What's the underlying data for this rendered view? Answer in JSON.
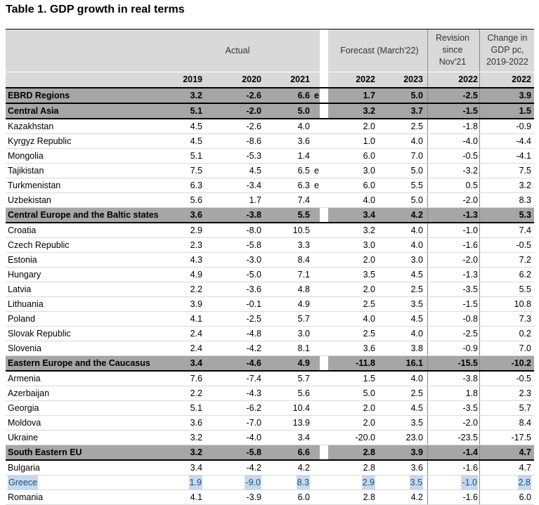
{
  "title": "Table 1. GDP growth in real terms",
  "headers": {
    "actual": "Actual",
    "forecast": "Forecast (March'22)",
    "revision": "Revision\nsince\nNov'21",
    "change": "Change in\nGDP pc,\n2019-2022"
  },
  "subheaders": [
    "2019",
    "2020",
    "2021",
    "2022",
    "2023",
    "2022",
    "2022"
  ],
  "rows": [
    {
      "name": "EBRD Regions",
      "type": "group",
      "v": [
        "3.2",
        "-2.6",
        "6.6",
        "1.7",
        "5.0",
        "-2.5",
        "3.9"
      ],
      "mark": "e"
    },
    {
      "name": "Central Asia",
      "type": "group",
      "v": [
        "5.1",
        "-2.0",
        "5.0",
        "3.2",
        "3.7",
        "-1.5",
        "1.5"
      ],
      "mark": ""
    },
    {
      "name": "Kazakhstan",
      "type": "norm",
      "v": [
        "4.5",
        "-2.6",
        "4.0",
        "2.0",
        "2.5",
        "-1.8",
        "-0.9"
      ],
      "mark": ""
    },
    {
      "name": "Kyrgyz Republic",
      "type": "norm",
      "v": [
        "4.5",
        "-8.6",
        "3.6",
        "1.0",
        "4.0",
        "-4.0",
        "-4.4"
      ],
      "mark": ""
    },
    {
      "name": "Mongolia",
      "type": "norm",
      "v": [
        "5.1",
        "-5.3",
        "1.4",
        "6.0",
        "7.0",
        "-0.5",
        "-4.1"
      ],
      "mark": ""
    },
    {
      "name": "Tajikistan",
      "type": "norm",
      "v": [
        "7.5",
        "4.5",
        "6.5",
        "3.0",
        "5.0",
        "-3.2",
        "7.5"
      ],
      "mark": "e"
    },
    {
      "name": "Turkmenistan",
      "type": "norm",
      "v": [
        "6.3",
        "-3.4",
        "6.3",
        "6.0",
        "5.5",
        "0.5",
        "3.2"
      ],
      "mark": "e"
    },
    {
      "name": "Uzbekistan",
      "type": "norm",
      "v": [
        "5.6",
        "1.7",
        "7.4",
        "4.0",
        "5.0",
        "-2.0",
        "8.3"
      ],
      "mark": ""
    },
    {
      "name": "Central Europe and the Baltic states",
      "type": "group",
      "v": [
        "3.6",
        "-3.8",
        "5.5",
        "3.4",
        "4.2",
        "-1.3",
        "5.3"
      ],
      "mark": ""
    },
    {
      "name": "Croatia",
      "type": "norm",
      "v": [
        "2.9",
        "-8.0",
        "10.5",
        "3.2",
        "4.0",
        "-1.0",
        "7.4"
      ],
      "mark": ""
    },
    {
      "name": "Czech Republic",
      "type": "norm",
      "v": [
        "2.3",
        "-5.8",
        "3.3",
        "3.0",
        "4.0",
        "-1.6",
        "-0.5"
      ],
      "mark": ""
    },
    {
      "name": "Estonia",
      "type": "norm",
      "v": [
        "4.3",
        "-3.0",
        "8.4",
        "2.0",
        "3.0",
        "-2.0",
        "7.2"
      ],
      "mark": ""
    },
    {
      "name": "Hungary",
      "type": "norm",
      "v": [
        "4.9",
        "-5.0",
        "7.1",
        "3.5",
        "4.5",
        "-1.3",
        "6.2"
      ],
      "mark": ""
    },
    {
      "name": "Latvia",
      "type": "norm",
      "v": [
        "2.2",
        "-3.6",
        "4.8",
        "2.0",
        "2.5",
        "-3.5",
        "5.5"
      ],
      "mark": ""
    },
    {
      "name": "Lithuania",
      "type": "norm",
      "v": [
        "3.9",
        "-0.1",
        "4.9",
        "2.5",
        "3.5",
        "-1.5",
        "10.8"
      ],
      "mark": ""
    },
    {
      "name": "Poland",
      "type": "norm",
      "v": [
        "4.1",
        "-2.5",
        "5.7",
        "4.0",
        "4.5",
        "-0.8",
        "7.3"
      ],
      "mark": ""
    },
    {
      "name": "Slovak Republic",
      "type": "norm",
      "v": [
        "2.4",
        "-4.8",
        "3.0",
        "2.5",
        "4.0",
        "-2.5",
        "0.2"
      ],
      "mark": ""
    },
    {
      "name": "Slovenia",
      "type": "norm",
      "v": [
        "2.4",
        "-4.2",
        "8.1",
        "3.6",
        "3.8",
        "-0.9",
        "7.0"
      ],
      "mark": ""
    },
    {
      "name": "Eastern Europe and the Caucasus",
      "type": "group",
      "v": [
        "3.4",
        "-4.6",
        "4.9",
        "-11.8",
        "16.1",
        "-15.5",
        "-10.2"
      ],
      "mark": ""
    },
    {
      "name": "Armenia",
      "type": "norm",
      "v": [
        "7.6",
        "-7.4",
        "5.7",
        "1.5",
        "4.0",
        "-3.8",
        "-0.5"
      ],
      "mark": ""
    },
    {
      "name": "Azerbaijan",
      "type": "norm",
      "v": [
        "2.2",
        "-4.3",
        "5.6",
        "5.0",
        "2.5",
        "1.8",
        "2.3"
      ],
      "mark": ""
    },
    {
      "name": "Georgia",
      "type": "norm",
      "v": [
        "5.1",
        "-6.2",
        "10.4",
        "2.0",
        "4.5",
        "-3.5",
        "5.7"
      ],
      "mark": ""
    },
    {
      "name": "Moldova",
      "type": "norm",
      "v": [
        "3.6",
        "-7.0",
        "13.9",
        "2.0",
        "3.5",
        "-2.0",
        "8.4"
      ],
      "mark": ""
    },
    {
      "name": "Ukraine",
      "type": "norm",
      "v": [
        "3.2",
        "-4.0",
        "3.4",
        "-20.0",
        "23.0",
        "-23.5",
        "-17.5"
      ],
      "mark": ""
    },
    {
      "name": "South Eastern EU",
      "type": "group",
      "v": [
        "3.2",
        "-5.8",
        "6.6",
        "2.8",
        "3.9",
        "-1.4",
        "4.7"
      ],
      "mark": ""
    },
    {
      "name": "Bulgaria",
      "type": "norm",
      "v": [
        "3.4",
        "-4.2",
        "4.2",
        "2.8",
        "3.6",
        "-1.6",
        "4.7"
      ],
      "mark": ""
    },
    {
      "name": "Greece",
      "type": "hl",
      "v": [
        "1.9",
        "-9.0",
        "8.3",
        "2.9",
        "3.5",
        "-1.0",
        "2.8"
      ],
      "mark": ""
    },
    {
      "name": "Romania",
      "type": "norm",
      "v": [
        "4.1",
        "-3.9",
        "6.0",
        "2.8",
        "4.2",
        "-1.6",
        "6.0"
      ],
      "mark": ""
    }
  ]
}
